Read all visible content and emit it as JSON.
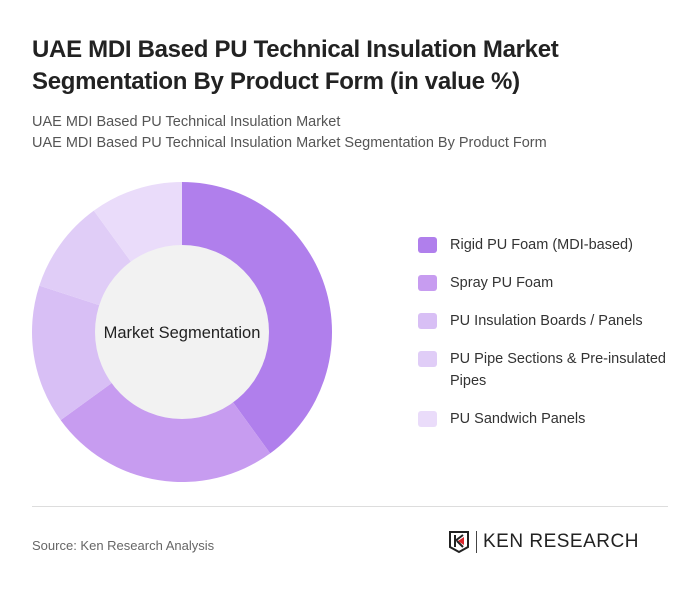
{
  "title": "UAE MDI Based PU Technical Insulation Market Segmentation By Product Form (in value %)",
  "subtitle1": "UAE MDI Based PU Technical Insulation Market",
  "subtitle2": "UAE MDI Based PU Technical Insulation Market Segmentation By Product Form",
  "source": "Source: Ken Research Analysis",
  "logo_text": "KEN RESEARCH",
  "chart_data": {
    "type": "pie",
    "variant": "donut",
    "center_label": "Market Segmentation",
    "legend_position": "right",
    "categories": [
      "Rigid PU Foam (MDI-based)",
      "Spray PU Foam",
      "PU Insulation Boards / Panels",
      "PU Pipe Sections & Pre-insulated Pipes",
      "PU Sandwich Panels"
    ],
    "values": [
      40,
      25,
      15,
      10,
      10
    ],
    "colors": [
      "#b07fec",
      "#c79cf0",
      "#d8bff5",
      "#e0cdf7",
      "#eadcfa"
    ]
  }
}
